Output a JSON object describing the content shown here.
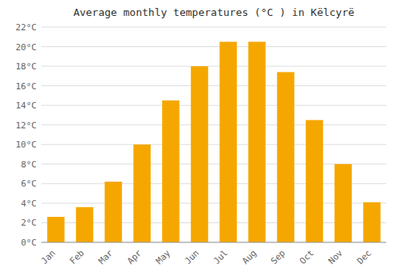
{
  "chart_data": {
    "type": "bar",
    "title": "Average monthly temperatures (°C ) in Këlcyrë",
    "categories": [
      "Jan",
      "Feb",
      "Mar",
      "Apr",
      "May",
      "Jun",
      "Jul",
      "Aug",
      "Sep",
      "Oct",
      "Nov",
      "Dec"
    ],
    "values": [
      2.6,
      3.6,
      6.2,
      10.0,
      14.5,
      18.0,
      20.5,
      20.5,
      17.4,
      12.5,
      8.0,
      4.1
    ],
    "color": "#F5A700",
    "ylim": [
      0,
      22
    ],
    "yticks": [
      {
        "value": 0,
        "label": "0°C"
      },
      {
        "value": 2,
        "label": "2°C"
      },
      {
        "value": 4,
        "label": "4°C"
      },
      {
        "value": 6,
        "label": "6°C"
      },
      {
        "value": 8,
        "label": "8°C"
      },
      {
        "value": 10,
        "label": "10°C"
      },
      {
        "value": 12,
        "label": "12°C"
      },
      {
        "value": 14,
        "label": "14°C"
      },
      {
        "value": 16,
        "label": "16°C"
      },
      {
        "value": 18,
        "label": "18°C"
      },
      {
        "value": 20,
        "label": "20°C"
      },
      {
        "value": 22,
        "label": "22°C"
      }
    ],
    "grid": true
  }
}
